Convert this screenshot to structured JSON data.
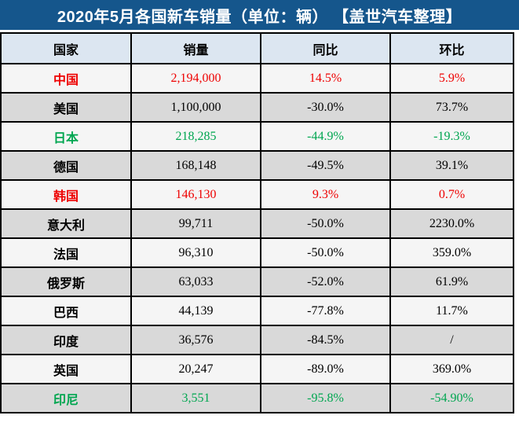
{
  "header": {
    "title": "2020年5月各国新车销量（单位：辆） 【盖世汽车整理】"
  },
  "colors": {
    "title_bar_bg": "#15568C",
    "title_text": "#FFFFFF",
    "header_row_bg": "#DCE6F1",
    "row_light_bg": "#F5F5F5",
    "row_dark_bg": "#D9D9D9",
    "highlight_red": "#EE0000",
    "highlight_green": "#00A650",
    "text_black": "#000000",
    "border": "#000000"
  },
  "chart_data": {
    "type": "table",
    "title": "2020年5月各国新车销量（单位：辆） 【盖世汽车整理】",
    "headers": [
      "国家",
      "销量",
      "同比",
      "环比"
    ],
    "rows": [
      {
        "country": "中国",
        "sales": "2,194,000",
        "yoy": "14.5%",
        "mom": "5.9%",
        "color": "red"
      },
      {
        "country": "美国",
        "sales": "1,100,000",
        "yoy": "-30.0%",
        "mom": "73.7%",
        "color": "black"
      },
      {
        "country": "日本",
        "sales": "218,285",
        "yoy": "-44.9%",
        "mom": "-19.3%",
        "color": "green"
      },
      {
        "country": "德国",
        "sales": "168,148",
        "yoy": "-49.5%",
        "mom": "39.1%",
        "color": "black"
      },
      {
        "country": "韩国",
        "sales": "146,130",
        "yoy": "9.3%",
        "mom": "0.7%",
        "color": "red"
      },
      {
        "country": "意大利",
        "sales": "99,711",
        "yoy": "-50.0%",
        "mom": "2230.0%",
        "color": "black"
      },
      {
        "country": "法国",
        "sales": "96,310",
        "yoy": "-50.0%",
        "mom": "359.0%",
        "color": "black"
      },
      {
        "country": "俄罗斯",
        "sales": "63,033",
        "yoy": "-52.0%",
        "mom": "61.9%",
        "color": "black"
      },
      {
        "country": "巴西",
        "sales": "44,139",
        "yoy": "-77.8%",
        "mom": "11.7%",
        "color": "black"
      },
      {
        "country": "印度",
        "sales": "36,576",
        "yoy": "-84.5%",
        "mom": "/",
        "color": "black"
      },
      {
        "country": "英国",
        "sales": "20,247",
        "yoy": "-89.0%",
        "mom": "369.0%",
        "color": "black"
      },
      {
        "country": "印尼",
        "sales": "3,551",
        "yoy": "-95.8%",
        "mom": "-54.90%",
        "color": "green"
      }
    ]
  }
}
